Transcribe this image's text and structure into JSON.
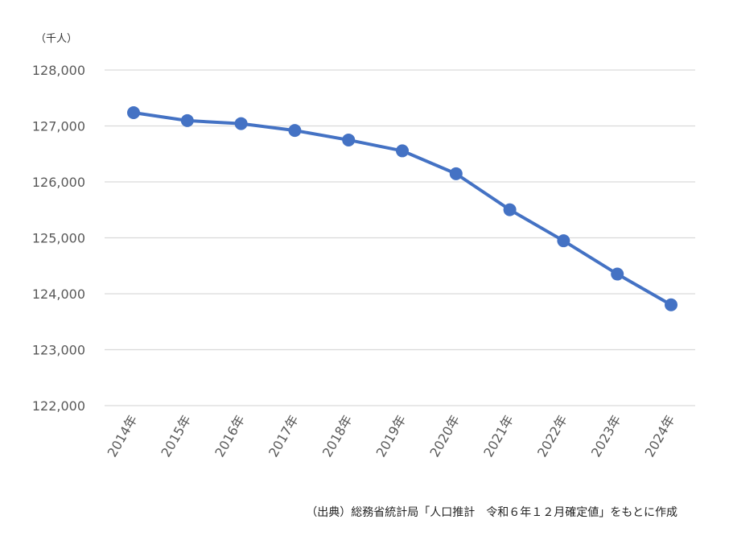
{
  "chart_data": {
    "type": "line",
    "unit_label": "（千人）",
    "source_note": "（出典）総務省統計局「人口推計　令和６年１２月確定値」をもとに作成",
    "categories": [
      "2014年",
      "2015年",
      "2016年",
      "2017年",
      "2018年",
      "2019年",
      "2020年",
      "2021年",
      "2022年",
      "2023年",
      "2024年"
    ],
    "series": [
      {
        "values": [
          127237,
          127095,
          127042,
          126919,
          126749,
          126555,
          126146,
          125502,
          124947,
          124352,
          123802
        ]
      }
    ],
    "ylim": [
      122000,
      128000
    ],
    "yticks": [
      122000,
      123000,
      124000,
      125000,
      126000,
      127000,
      128000
    ],
    "ytick_labels": [
      "122,000",
      "123,000",
      "124,000",
      "125,000",
      "126,000",
      "127,000",
      "128,000"
    ],
    "grid": true,
    "colors": {
      "series": "#4472C4",
      "grid": "#D9D9D9",
      "tick_text": "#595959"
    }
  }
}
